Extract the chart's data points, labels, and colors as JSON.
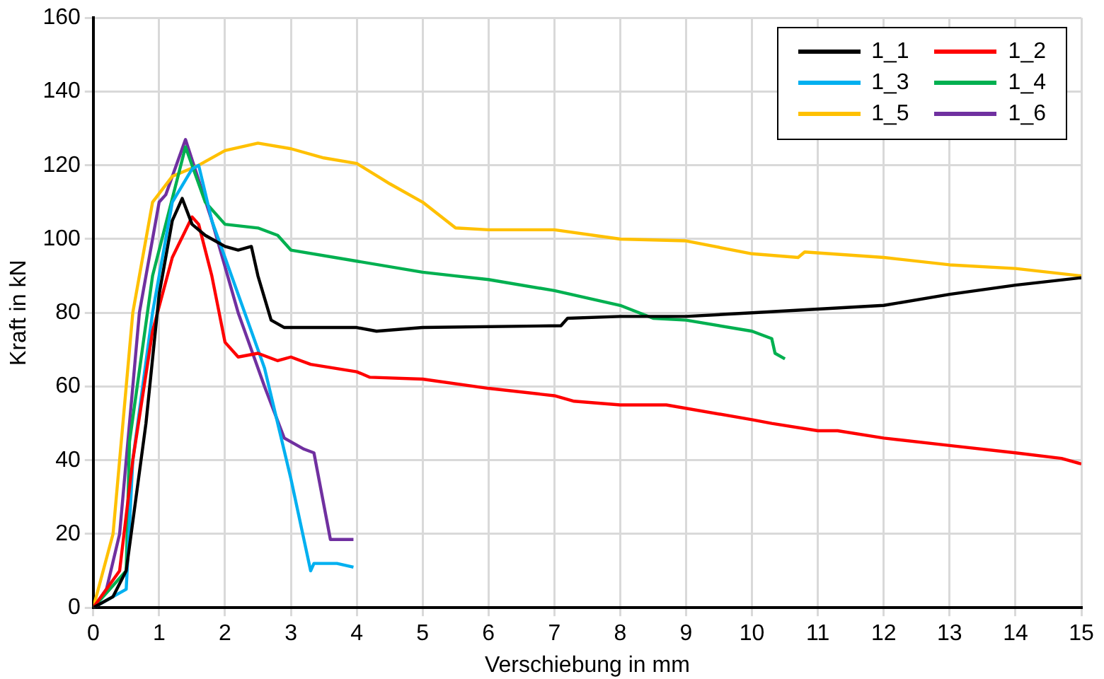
{
  "chart_data": {
    "type": "line",
    "xlabel": "Verschiebung in mm",
    "ylabel": "Kraft in kN",
    "xlim": [
      0,
      15
    ],
    "xticks": [
      0,
      1,
      2,
      3,
      4,
      5,
      6,
      7,
      8,
      9,
      10,
      11,
      12,
      13,
      14,
      15
    ],
    "ylim": [
      0,
      160
    ],
    "yticks": [
      0,
      20,
      40,
      60,
      80,
      100,
      120,
      140,
      160
    ],
    "grid": true,
    "legend": "top right",
    "marker": "none",
    "line_style": "solid",
    "series": [
      {
        "name": "1_1",
        "color": "#000000",
        "x": [
          0,
          0.3,
          0.5,
          0.8,
          1.0,
          1.2,
          1.35,
          1.5,
          1.7,
          2.0,
          2.2,
          2.4,
          2.5,
          2.7,
          2.9,
          4,
          4.3,
          5,
          7.1,
          7.2,
          8,
          9,
          10,
          11,
          12,
          13,
          14,
          15
        ],
        "values": [
          0,
          3,
          10,
          50,
          85,
          105,
          111,
          104,
          101,
          98,
          97,
          98,
          90,
          78,
          76,
          76,
          75,
          76,
          76.5,
          78.5,
          79,
          79,
          80,
          81,
          82,
          85,
          87.5,
          89.5
        ]
      },
      {
        "name": "1_2",
        "color": "#ff0000",
        "x": [
          0,
          0.4,
          0.6,
          0.9,
          1.2,
          1.5,
          1.6,
          1.8,
          2.0,
          2.2,
          2.5,
          2.8,
          3,
          3.3,
          4,
          4.2,
          5,
          6,
          7,
          7.3,
          8,
          8.7,
          10,
          10.3,
          11,
          11.3,
          12,
          13,
          14,
          14.7,
          15
        ],
        "values": [
          0,
          10,
          40,
          75,
          95,
          106,
          104,
          90,
          72,
          68,
          69,
          67,
          68,
          66,
          64,
          62.5,
          62,
          59.5,
          57.5,
          56,
          55,
          55,
          51,
          50,
          48,
          48,
          46,
          44,
          42,
          40.5,
          39
        ]
      },
      {
        "name": "1_3",
        "color": "#00b0f0",
        "x": [
          0,
          0.5,
          0.6,
          0.9,
          1.2,
          1.5,
          1.6,
          1.8,
          2.2,
          2.6,
          3.0,
          3.3,
          3.35,
          3.7,
          3.95
        ],
        "values": [
          0,
          5,
          40,
          80,
          110,
          119,
          120,
          105,
          85,
          65,
          35,
          10,
          12,
          12,
          11
        ]
      },
      {
        "name": "1_4",
        "color": "#00b050",
        "x": [
          0,
          0.5,
          0.55,
          0.9,
          1.4,
          1.7,
          2,
          2.5,
          2.8,
          3.0,
          4,
          5,
          5.5,
          6,
          7,
          8,
          8.5,
          9,
          10,
          10.3,
          10.35,
          10.5
        ],
        "values": [
          0,
          10,
          45,
          90,
          125,
          110,
          104,
          103,
          101,
          97,
          94,
          91,
          90,
          89,
          86,
          82,
          78.5,
          78,
          75,
          73,
          69,
          67.5
        ]
      },
      {
        "name": "1_5",
        "color": "#ffc000",
        "x": [
          0,
          0.3,
          0.6,
          0.9,
          1.2,
          1.6,
          2,
          2.5,
          3,
          3.5,
          4,
          4.5,
          5,
          5.5,
          6,
          7,
          8,
          9,
          10,
          10.7,
          10.8,
          12,
          13,
          14,
          15
        ],
        "values": [
          0,
          20,
          80,
          110,
          117,
          120,
          124,
          126,
          124.5,
          122,
          120.5,
          115,
          110,
          103,
          102.5,
          102.5,
          100,
          99.5,
          96,
          95,
          96.5,
          95,
          93,
          92,
          90
        ]
      },
      {
        "name": "1_6",
        "color": "#7030a0",
        "x": [
          0,
          0.2,
          0.4,
          0.7,
          1,
          1.1,
          1.4,
          1.8,
          2.2,
          2.6,
          2.9,
          3.2,
          3.35,
          3.6,
          3.95
        ],
        "values": [
          0,
          5,
          20,
          80,
          110,
          112,
          127,
          105,
          80,
          60,
          46,
          43,
          42,
          18.5,
          18.5
        ]
      }
    ]
  }
}
